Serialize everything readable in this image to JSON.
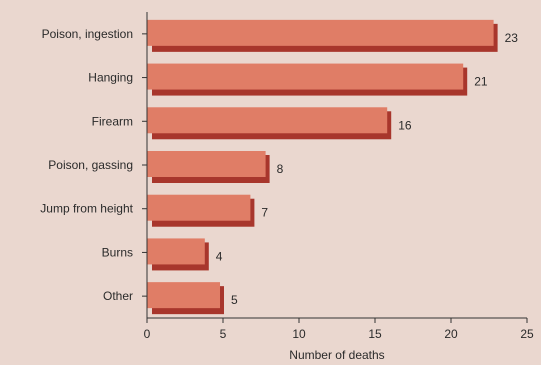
{
  "chart_data": {
    "type": "bar",
    "orientation": "horizontal",
    "categories": [
      "Poison, ingestion",
      "Hanging",
      "Firearm",
      "Poison, gassing",
      "Jump from height",
      "Burns",
      "Other"
    ],
    "values": [
      23,
      21,
      16,
      8,
      7,
      4,
      5
    ],
    "data_labels": [
      "23",
      "21",
      "16",
      "8",
      "7",
      "4",
      "5"
    ],
    "xlabel": "Number of deaths",
    "xlim": [
      0,
      25
    ],
    "xticks": [
      0,
      5,
      10,
      15,
      20,
      25
    ],
    "xtick_labels": [
      "0",
      "5",
      "10",
      "15",
      "20",
      "25"
    ],
    "grid": false,
    "colors": {
      "background": "#ead7cf",
      "bar_face": "#e07d66",
      "bar_shadow": "#a8362c",
      "axis": "#333333",
      "text": "#2a2a2a"
    }
  }
}
